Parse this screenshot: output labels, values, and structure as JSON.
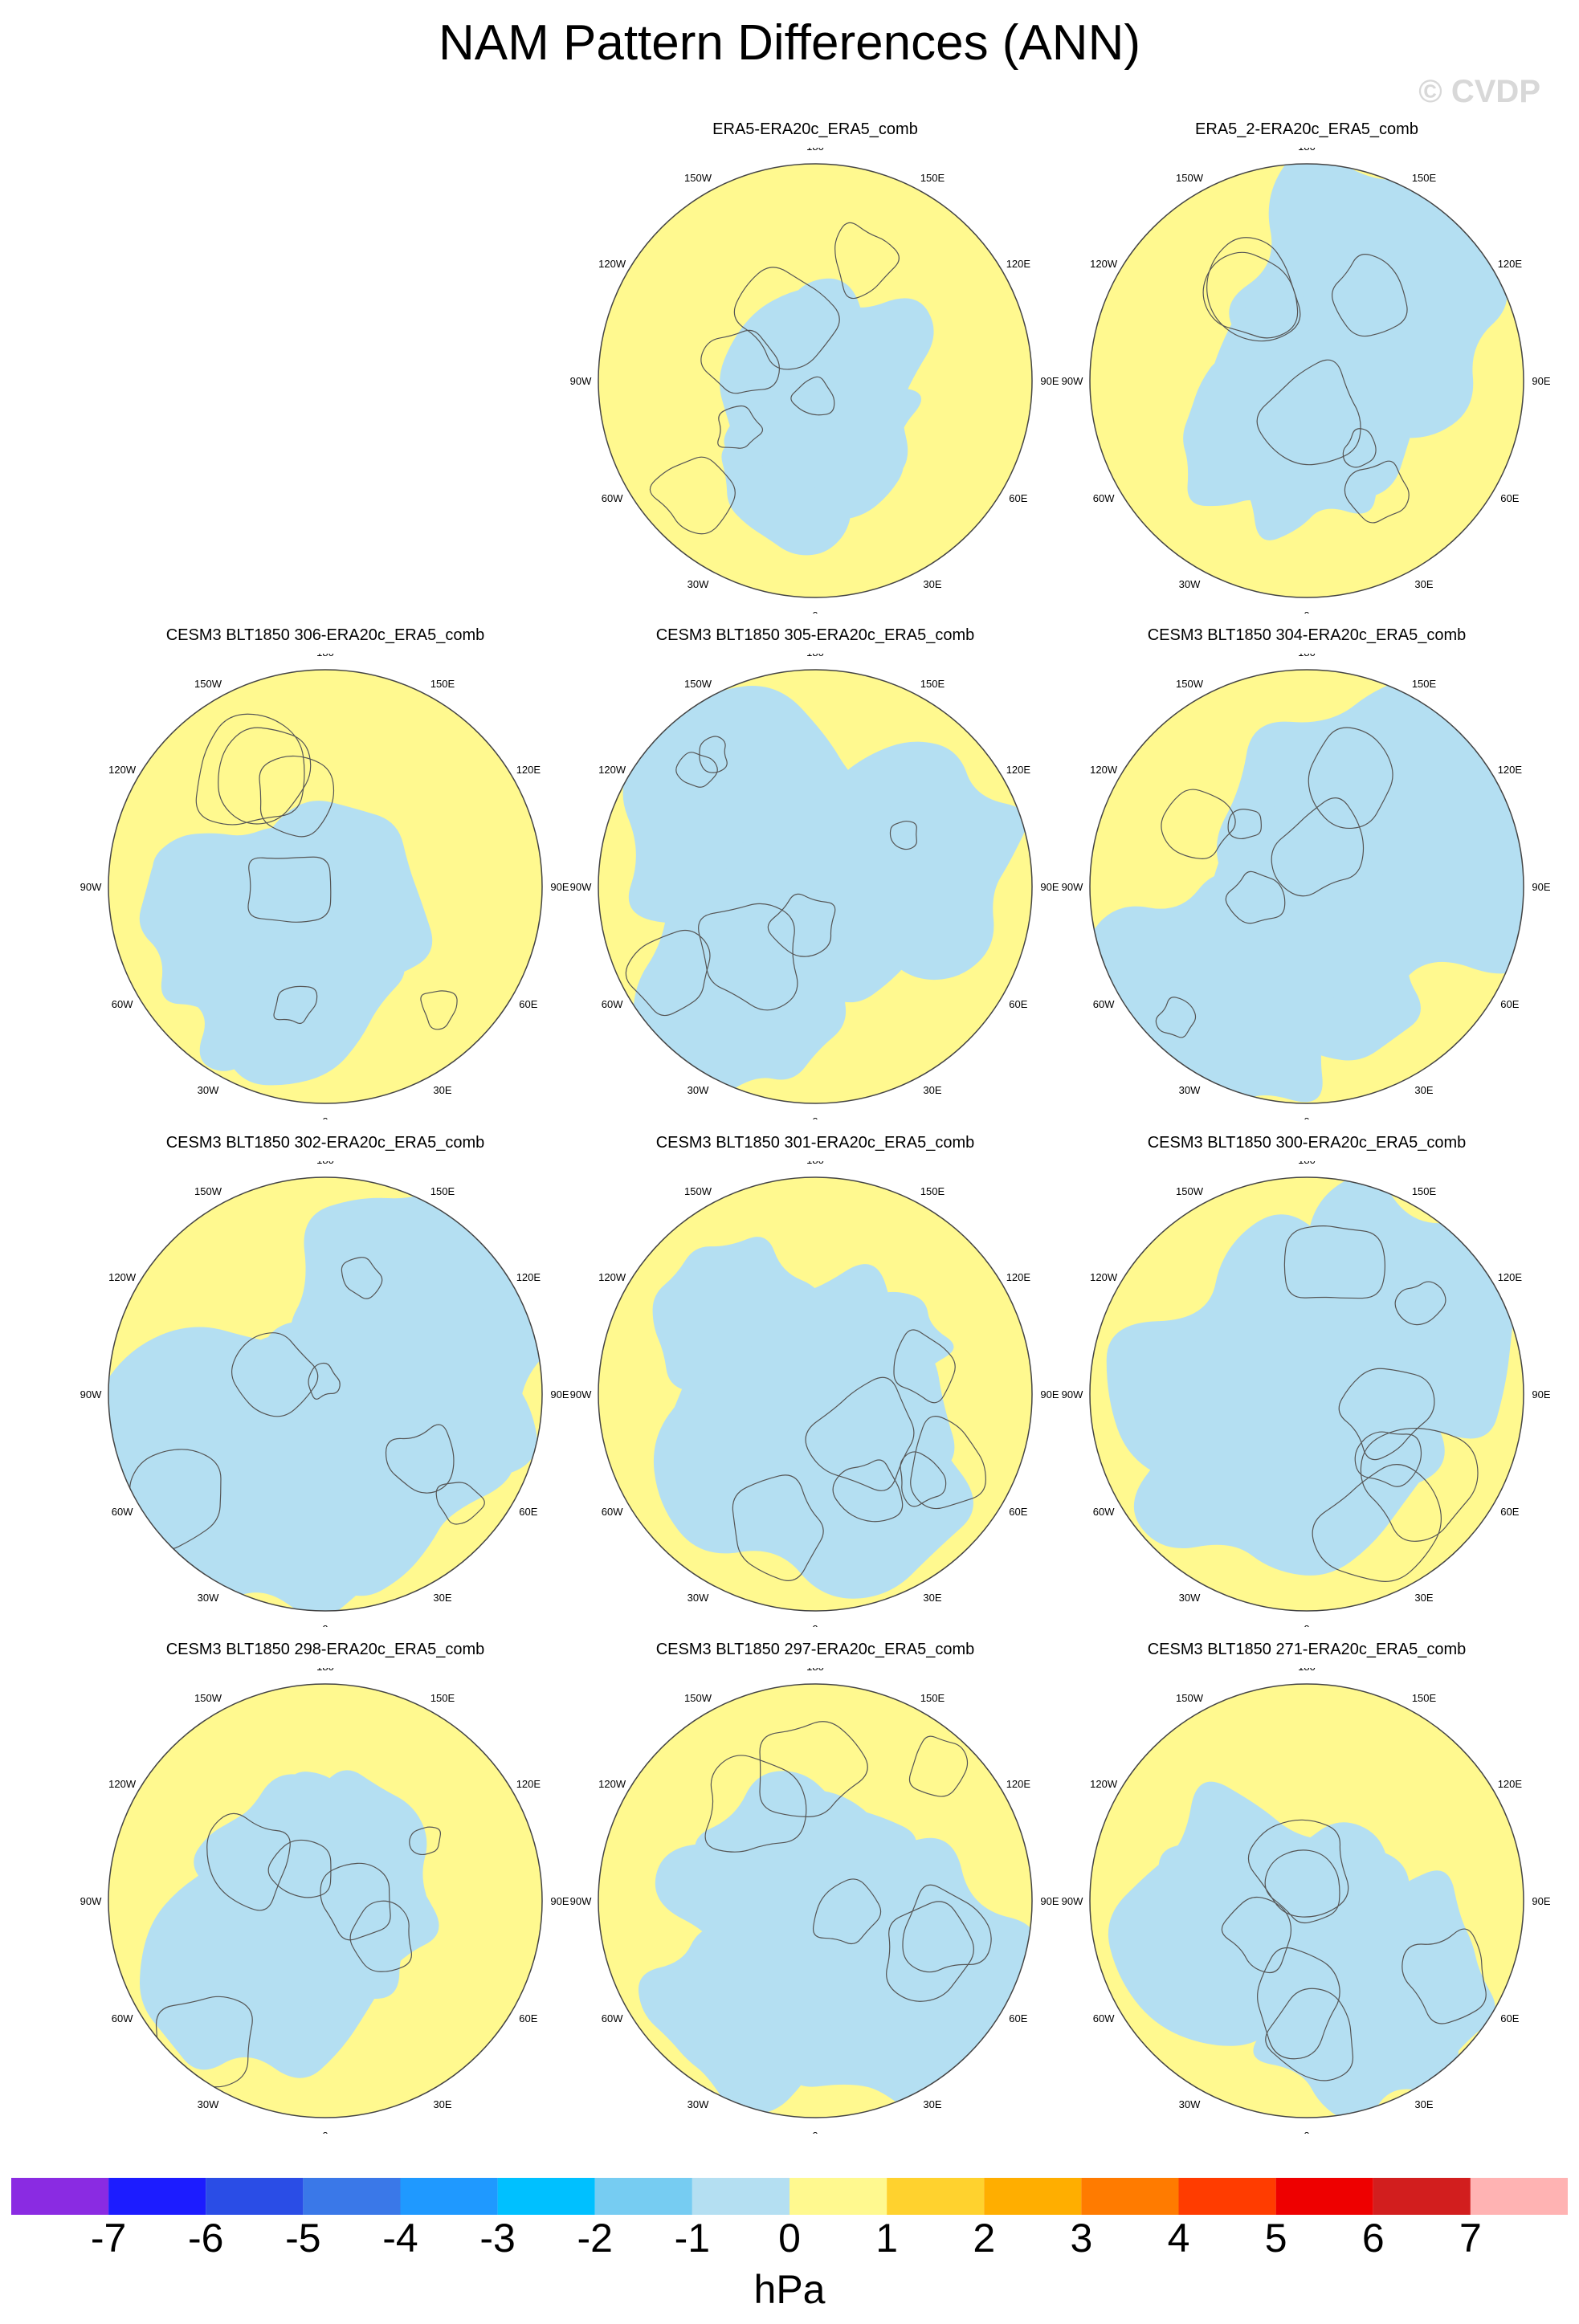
{
  "title": "NAM Pattern Differences (ANN)",
  "watermark": "© CVDP",
  "colors": {
    "negative_small": "#b4dff2",
    "positive_small": "#fff98f",
    "outline": "#444444",
    "coast": "#555555"
  },
  "map_extent": "Northern Hemisphere polar stereographic, 0° at bottom, 180 at top",
  "longitude_labels": [
    "180",
    "150E",
    "120E",
    "90E",
    "60E",
    "30E",
    "0",
    "30W",
    "60W",
    "90W",
    "120W",
    "150W"
  ],
  "panels": [
    {
      "title": "",
      "empty": true
    },
    {
      "title": "ERA5-ERA20c_ERA5_comb"
    },
    {
      "title": "ERA5_2-ERA20c_ERA5_comb"
    },
    {
      "title": "CESM3 BLT1850 306-ERA20c_ERA5_comb"
    },
    {
      "title": "CESM3 BLT1850 305-ERA20c_ERA5_comb"
    },
    {
      "title": "CESM3 BLT1850 304-ERA20c_ERA5_comb"
    },
    {
      "title": "CESM3 BLT1850 302-ERA20c_ERA5_comb"
    },
    {
      "title": "CESM3 BLT1850 301-ERA20c_ERA5_comb"
    },
    {
      "title": "CESM3 BLT1850 300-ERA20c_ERA5_comb"
    },
    {
      "title": "CESM3 BLT1850 298-ERA20c_ERA5_comb"
    },
    {
      "title": "CESM3 BLT1850 297-ERA20c_ERA5_comb"
    },
    {
      "title": "CESM3 BLT1850 271-ERA20c_ERA5_comb"
    }
  ],
  "colorbar": {
    "units": "hPa",
    "ticks": [
      "-7",
      "-6",
      "-5",
      "-4",
      "-3",
      "-2",
      "-1",
      "0",
      "1",
      "2",
      "3",
      "4",
      "5",
      "6",
      "7"
    ],
    "colors": [
      "#8a2be2",
      "#1c1cff",
      "#2a4de6",
      "#3a78e8",
      "#1f99ff",
      "#00c0ff",
      "#76ccf2",
      "#b4dff2",
      "#fff98f",
      "#ffd22e",
      "#ffae00",
      "#ff7b00",
      "#ff3c00",
      "#ee0000",
      "#d21e1e",
      "#ffb3b3"
    ]
  }
}
